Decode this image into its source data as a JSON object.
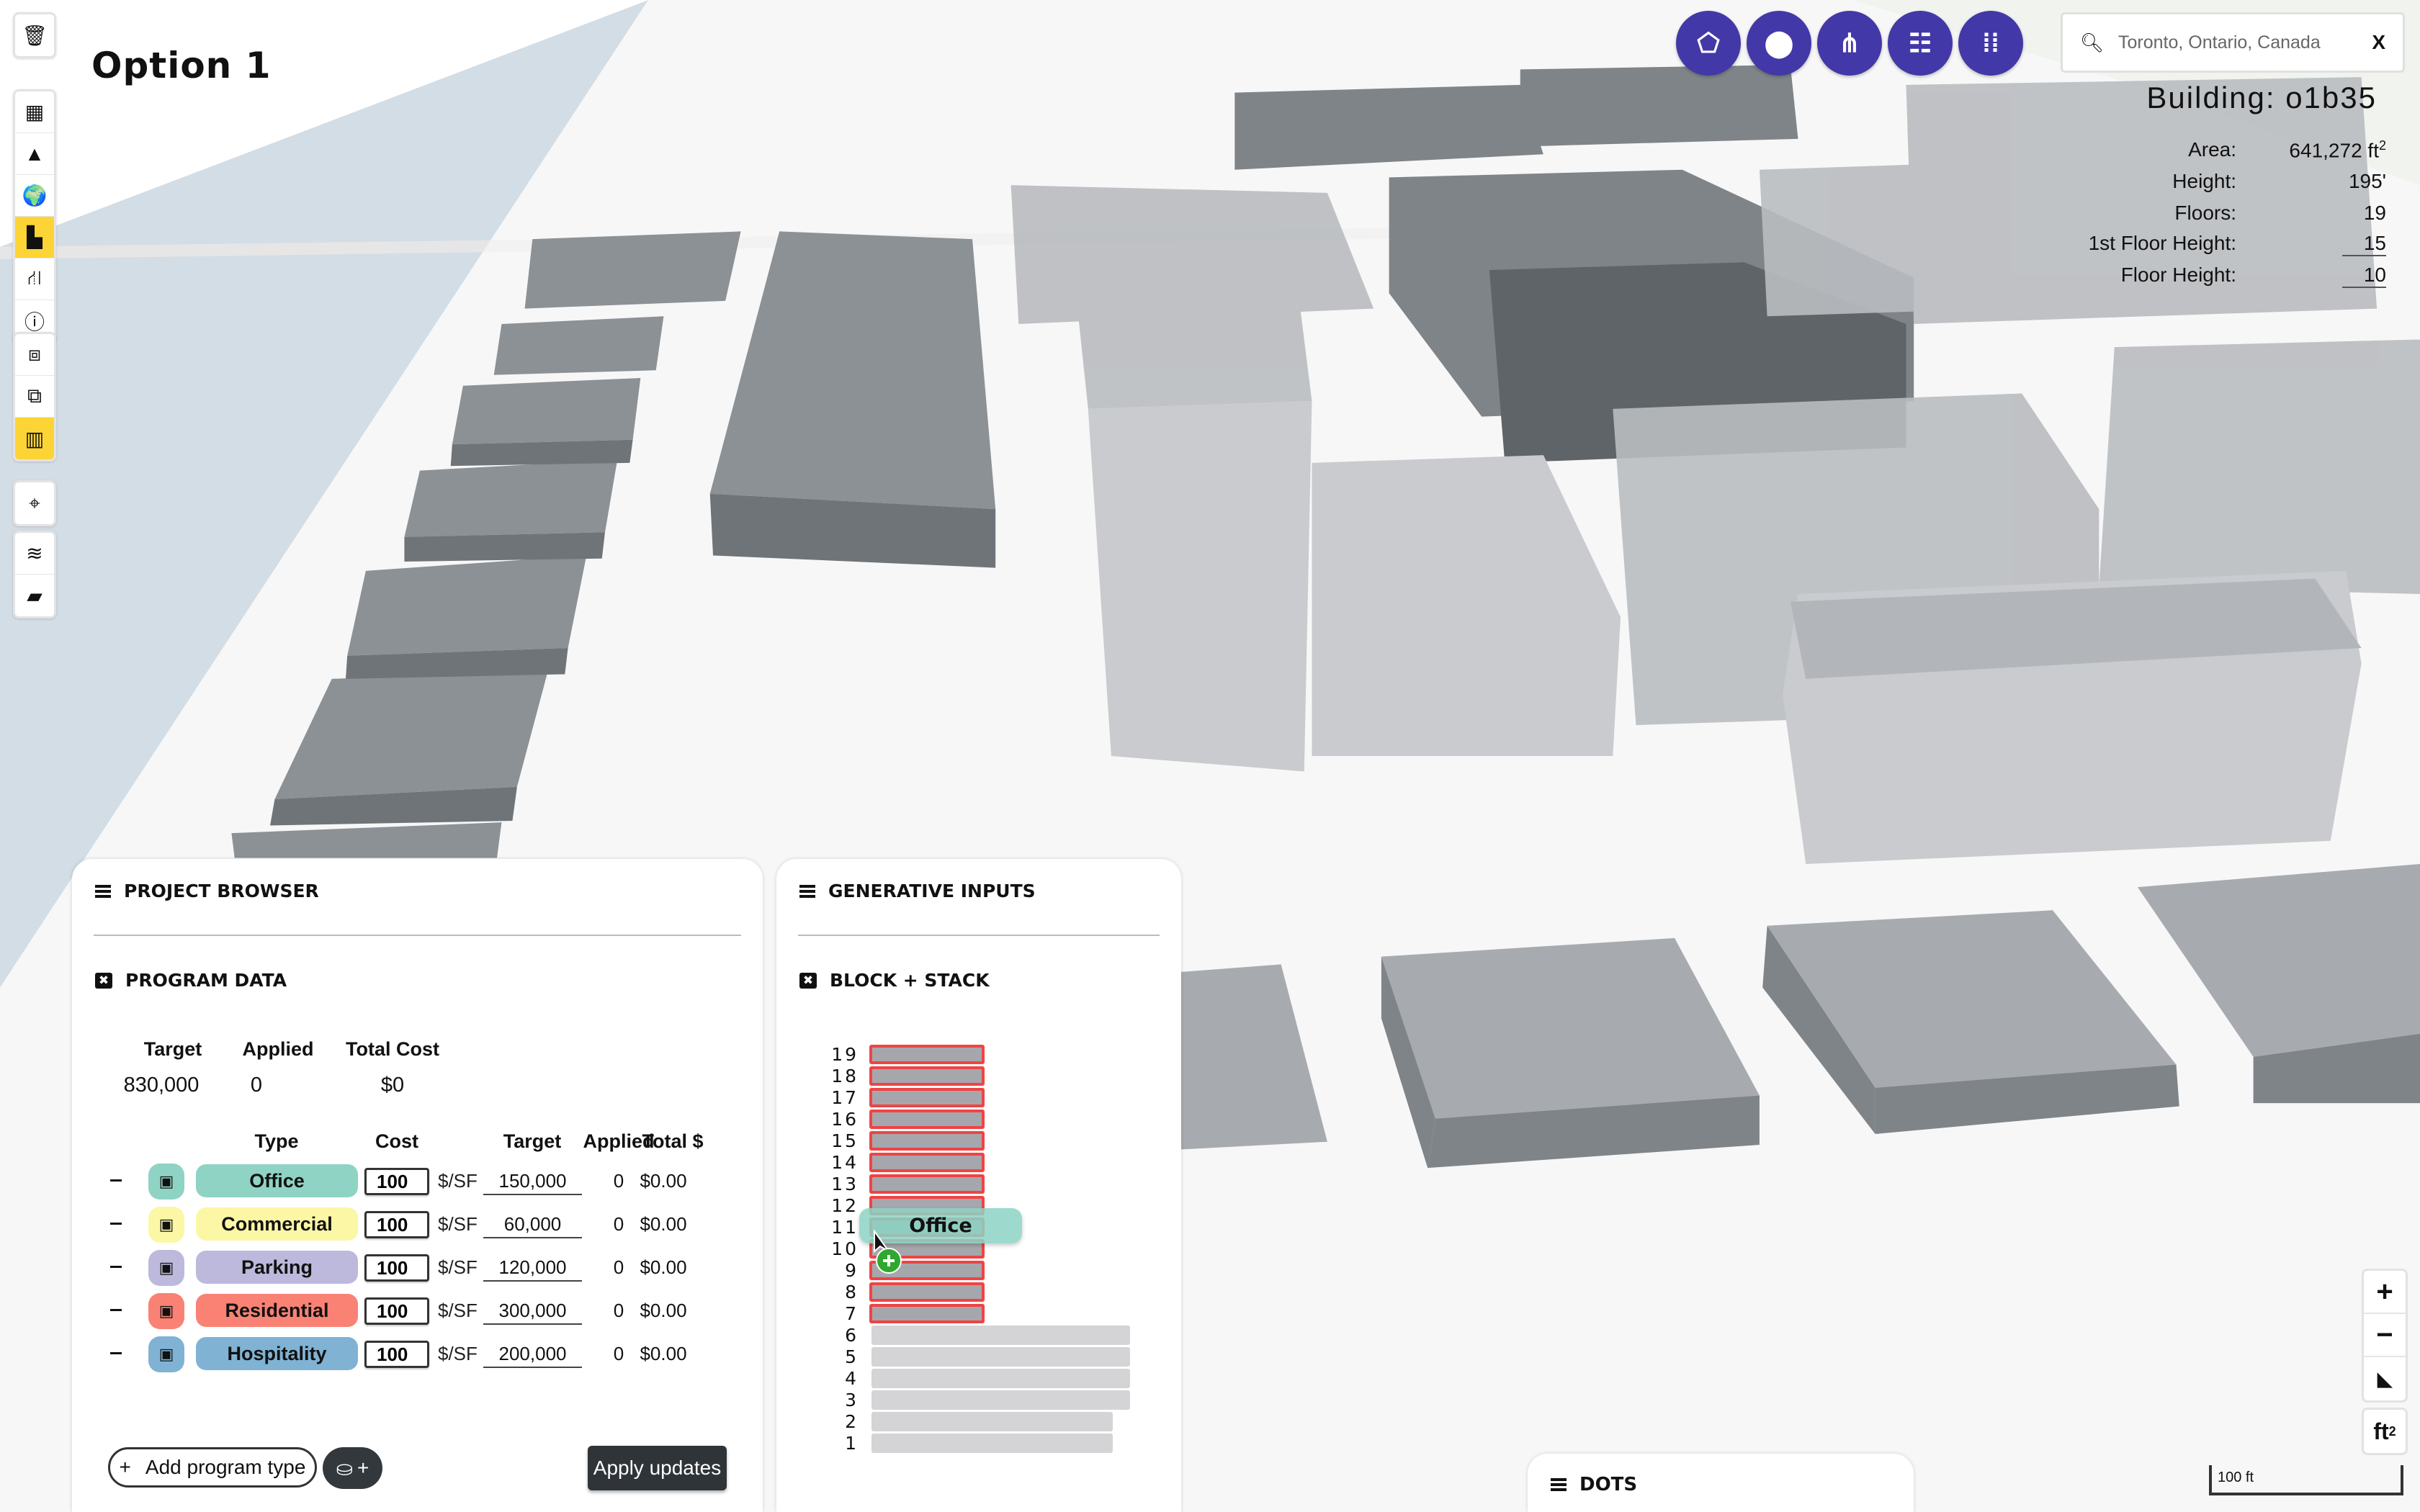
{
  "title": "Option 1",
  "toolbar": {
    "groups": [
      [
        {
          "icon": "trash-icon",
          "active": false
        }
      ],
      [
        {
          "icon": "grid-icon",
          "active": false
        },
        {
          "icon": "terrain-icon",
          "active": false
        },
        {
          "icon": "globe-icon",
          "active": false
        },
        {
          "icon": "city-buildings-icon",
          "active": true
        },
        {
          "icon": "road-icon",
          "active": false
        },
        {
          "icon": "info-icon",
          "active": false
        }
      ],
      [
        {
          "icon": "parcel-icon",
          "active": false
        },
        {
          "icon": "multi-parcel-icon",
          "active": false
        },
        {
          "icon": "building-icon",
          "active": true
        }
      ],
      [
        {
          "icon": "crosshair-icon",
          "active": false
        }
      ],
      [
        {
          "icon": "layers-icon",
          "active": false
        },
        {
          "icon": "note-icon",
          "active": false
        }
      ]
    ],
    "active_color": "#fdd436"
  },
  "top_actions": [
    {
      "icon": "polygon-draw-icon"
    },
    {
      "icon": "map-pin-icon"
    },
    {
      "icon": "node-graph-icon"
    },
    {
      "icon": "hierarchy-icon"
    },
    {
      "icon": "dot-grid-icon"
    }
  ],
  "accent_color": "#4338a8",
  "search": {
    "value": "Toronto, Ontario, Canada",
    "clear_label": "X"
  },
  "building": {
    "title": "Building: o1b35",
    "rows": [
      {
        "label": "Area:",
        "value": "641,272 ft",
        "sup": "2"
      },
      {
        "label": "Height:",
        "value": "195'"
      },
      {
        "label": "Floors:",
        "value": "19"
      },
      {
        "label": "1st Floor Height:",
        "value": "15"
      },
      {
        "label": "Floor Height:",
        "value": "10"
      }
    ]
  },
  "project_browser": {
    "title": "PROJECT BROWSER",
    "program_data": {
      "title": "PROGRAM DATA",
      "summary_headers": [
        "Target",
        "Applied",
        "Total Cost"
      ],
      "summary_values": [
        "830,000",
        "0",
        "$0"
      ],
      "table_headers": [
        "Type",
        "Cost",
        "Target",
        "Applied",
        "Total $"
      ],
      "rows": [
        {
          "type": "Office",
          "color": "#8fd3c5",
          "cost": "100",
          "unit": "$/SF",
          "target": "150,000",
          "applied": "0",
          "total": "$0.00"
        },
        {
          "type": "Commercial",
          "color": "#fbf7a5",
          "cost": "100",
          "unit": "$/SF",
          "target": "60,000",
          "applied": "0",
          "total": "$0.00"
        },
        {
          "type": "Parking",
          "color": "#bdb9dc",
          "cost": "100",
          "unit": "$/SF",
          "target": "120,000",
          "applied": "0",
          "total": "$0.00"
        },
        {
          "type": "Residential",
          "color": "#f98274",
          "cost": "100",
          "unit": "$/SF",
          "target": "300,000",
          "applied": "0",
          "total": "$0.00"
        },
        {
          "type": "Hospitality",
          "color": "#80b2d4",
          "cost": "100",
          "unit": "$/SF",
          "target": "200,000",
          "applied": "0",
          "total": "$0.00"
        }
      ],
      "add_label": "Add program type",
      "apply_label": "Apply updates"
    }
  },
  "generative_inputs": {
    "title": "GENERATIVE INPUTS",
    "block_stack": {
      "title": "BLOCK + STACK",
      "floors": [
        "19",
        "18",
        "17",
        "16",
        "15",
        "14",
        "13",
        "12",
        "11",
        "10",
        "9",
        "8",
        "7",
        "6",
        "5",
        "4",
        "3",
        "2",
        "1"
      ],
      "selected_floors": [
        "19",
        "18",
        "17",
        "16",
        "15",
        "14",
        "13",
        "12",
        "11",
        "10",
        "9",
        "8",
        "7"
      ],
      "dragging_label": "Office"
    }
  },
  "dots": {
    "title": "DOTS"
  },
  "map_controls": {
    "zoom_in": "+",
    "zoom_out": "−",
    "units_label": "ft",
    "units_sup": "2",
    "scale_label": "100 ft"
  }
}
